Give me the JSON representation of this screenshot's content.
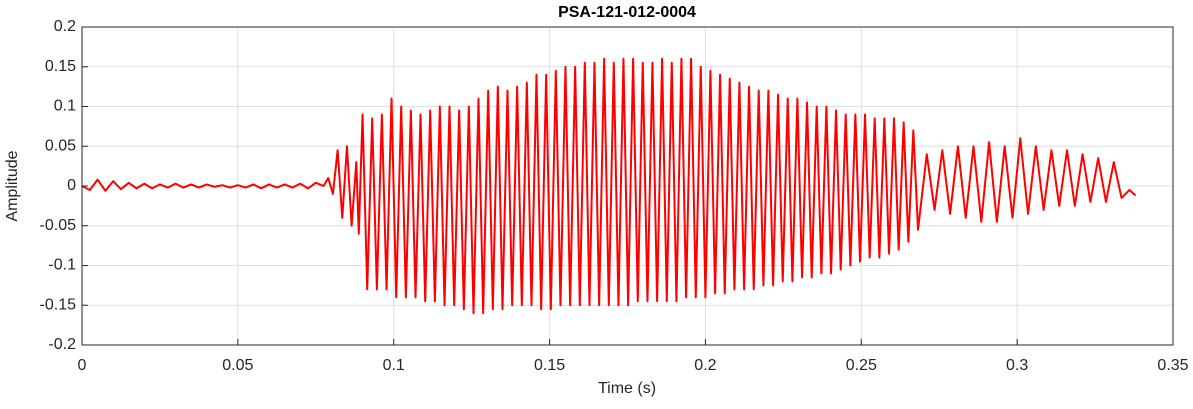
{
  "chart_data": {
    "type": "line",
    "title": "PSA-121-012-0004",
    "x_label": "Time (s)",
    "y_label": "Amplitude",
    "color": "#ff0000",
    "xlim": [
      0,
      0.35
    ],
    "xticks": [
      0,
      0.05,
      0.1,
      0.15,
      0.2,
      0.25,
      0.3,
      0.35
    ],
    "ylim": [
      -0.2,
      0.2
    ],
    "yticks": [
      -0.2,
      -0.15,
      -0.1,
      -0.05,
      0,
      0.05,
      0.1,
      0.15,
      0.2
    ],
    "grid": true,
    "x": [
      0,
      0.0025,
      0.005,
      0.0075,
      0.01,
      0.0125,
      0.015,
      0.0175,
      0.02,
      0.0225,
      0.025,
      0.0275,
      0.03,
      0.0325,
      0.035,
      0.0375,
      0.04,
      0.0425,
      0.045,
      0.0475,
      0.05,
      0.0525,
      0.055,
      0.0575,
      0.06,
      0.0625,
      0.065,
      0.0675,
      0.07,
      0.0725,
      0.075,
      0.0775,
      0.079,
      0.0805,
      0.082,
      0.0835,
      0.085,
      0.0865,
      0.088,
      0.0888,
      0.09,
      0.0915,
      0.0931,
      0.0946,
      0.0962,
      0.0977,
      0.0993,
      0.1008,
      0.1024,
      0.1039,
      0.1055,
      0.107,
      0.1086,
      0.1101,
      0.1117,
      0.1132,
      0.1148,
      0.1163,
      0.1179,
      0.1194,
      0.121,
      0.1225,
      0.1241,
      0.1256,
      0.1272,
      0.1287,
      0.1303,
      0.1318,
      0.1334,
      0.1349,
      0.1365,
      0.138,
      0.1396,
      0.1411,
      0.1427,
      0.1442,
      0.1458,
      0.1473,
      0.1489,
      0.1504,
      0.152,
      0.1535,
      0.1551,
      0.1566,
      0.1582,
      0.1597,
      0.1613,
      0.1628,
      0.1644,
      0.1659,
      0.1675,
      0.169,
      0.1706,
      0.1721,
      0.1737,
      0.1752,
      0.1768,
      0.1783,
      0.1799,
      0.1814,
      0.183,
      0.1845,
      0.1861,
      0.1876,
      0.1892,
      0.1907,
      0.1923,
      0.1938,
      0.1954,
      0.1969,
      0.1985,
      0.2,
      0.2016,
      0.2031,
      0.2047,
      0.2062,
      0.2078,
      0.2093,
      0.2109,
      0.2124,
      0.214,
      0.2155,
      0.2171,
      0.2186,
      0.2202,
      0.2217,
      0.2233,
      0.2248,
      0.2264,
      0.2279,
      0.2295,
      0.231,
      0.2326,
      0.2341,
      0.2357,
      0.2372,
      0.2388,
      0.2403,
      0.2419,
      0.2434,
      0.245,
      0.2465,
      0.2481,
      0.2496,
      0.2512,
      0.2527,
      0.2543,
      0.2558,
      0.2574,
      0.2589,
      0.2605,
      0.262,
      0.2636,
      0.2651,
      0.2667,
      0.2682,
      0.271,
      0.2735,
      0.276,
      0.2785,
      0.281,
      0.2835,
      0.286,
      0.2885,
      0.291,
      0.2935,
      0.296,
      0.2985,
      0.301,
      0.3035,
      0.306,
      0.3085,
      0.311,
      0.3135,
      0.316,
      0.3185,
      0.321,
      0.3235,
      0.326,
      0.3285,
      0.331,
      0.3335,
      0.336,
      0.338
    ],
    "values": [
      0,
      -0.005,
      0.008,
      -0.006,
      0.006,
      -0.004,
      0.004,
      -0.003,
      0.003,
      -0.003,
      0.002,
      -0.002,
      0.003,
      -0.002,
      0.002,
      -0.002,
      0.002,
      -0.001,
      0.001,
      -0.002,
      0.001,
      -0.002,
      0.002,
      -0.003,
      0.002,
      -0.002,
      0.002,
      -0.002,
      0.003,
      -0.003,
      0.004,
      0,
      0.01,
      -0.01,
      0.045,
      -0.04,
      0.05,
      -0.05,
      0.03,
      -0.06,
      0.09,
      -0.13,
      0.085,
      -0.13,
      0.09,
      -0.13,
      0.11,
      -0.14,
      0.1,
      -0.14,
      0.095,
      -0.14,
      0.09,
      -0.145,
      0.095,
      -0.145,
      0.1,
      -0.15,
      0.1,
      -0.15,
      0.095,
      -0.155,
      0.1,
      -0.16,
      0.11,
      -0.16,
      0.12,
      -0.155,
      0.125,
      -0.155,
      0.12,
      -0.15,
      0.125,
      -0.15,
      0.13,
      -0.15,
      0.14,
      -0.155,
      0.14,
      -0.155,
      0.145,
      -0.15,
      0.15,
      -0.15,
      0.15,
      -0.15,
      0.155,
      -0.15,
      0.155,
      -0.15,
      0.16,
      -0.15,
      0.155,
      -0.15,
      0.16,
      -0.15,
      0.16,
      -0.145,
      0.155,
      -0.145,
      0.155,
      -0.145,
      0.16,
      -0.145,
      0.155,
      -0.145,
      0.16,
      -0.14,
      0.16,
      -0.14,
      0.15,
      -0.14,
      0.145,
      -0.135,
      0.14,
      -0.135,
      0.135,
      -0.13,
      0.13,
      -0.13,
      0.125,
      -0.13,
      0.12,
      -0.125,
      0.12,
      -0.125,
      0.115,
      -0.12,
      0.11,
      -0.12,
      0.11,
      -0.115,
      0.105,
      -0.115,
      0.1,
      -0.11,
      0.1,
      -0.11,
      0.095,
      -0.105,
      0.09,
      -0.1,
      0.09,
      -0.095,
      0.09,
      -0.09,
      0.085,
      -0.09,
      0.085,
      -0.085,
      0.085,
      -0.08,
      0.08,
      -0.07,
      0.07,
      -0.055,
      0.04,
      -0.03,
      0.045,
      -0.035,
      0.05,
      -0.04,
      0.05,
      -0.045,
      0.055,
      -0.045,
      0.05,
      -0.04,
      0.06,
      -0.035,
      0.05,
      -0.03,
      0.045,
      -0.025,
      0.045,
      -0.025,
      0.04,
      -0.02,
      0.035,
      -0.02,
      0.03,
      -0.015,
      -0.005,
      -0.012
    ]
  }
}
